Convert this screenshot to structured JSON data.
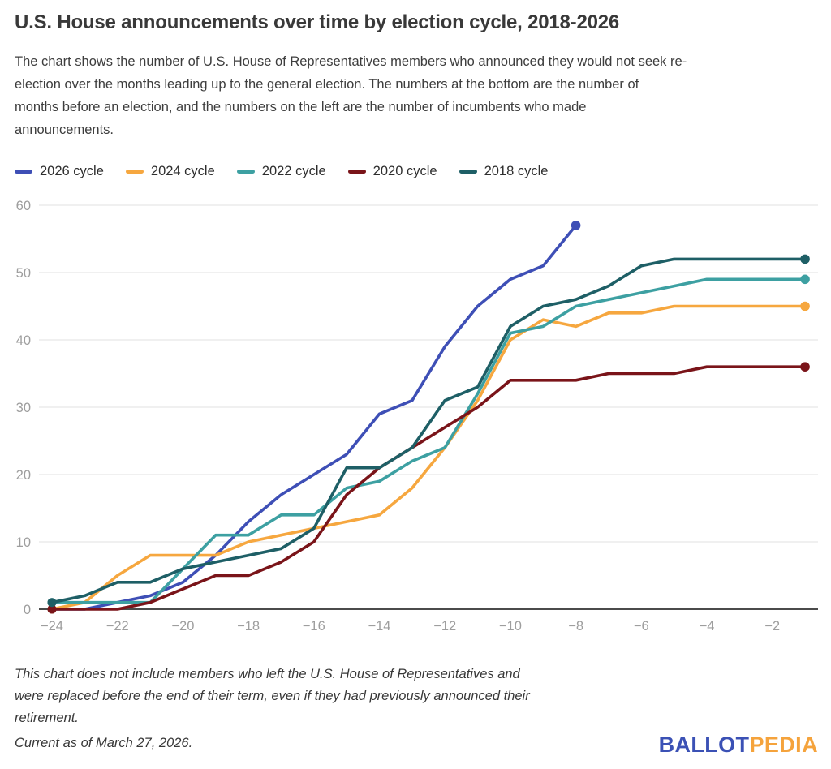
{
  "header": {
    "title": "U.S. House announcements over time by election cycle, 2018-2026",
    "subtitle": "The chart shows the number of U.S. House of Representatives members who announced they would not seek re-\nelection over the months leading up to the general election. The numbers at the bottom are the number of\nmonths before an election, and the numbers on the left are the number of incumbents who made\nannouncements."
  },
  "chart_data": {
    "type": "line",
    "x_range": [
      -24,
      -1
    ],
    "ylim": [
      0,
      60
    ],
    "xticks": [
      -24,
      -22,
      -20,
      -18,
      -16,
      -14,
      -12,
      -10,
      -8,
      -6,
      -4,
      -2
    ],
    "yticks": [
      0,
      10,
      20,
      30,
      40,
      50,
      60
    ],
    "grid": "horizontal",
    "legend_position": "top",
    "colors": {
      "gridline": "#e8e8e8",
      "zero_axis": "#4b4b4b",
      "tick_label": "#9e9e9e"
    },
    "series": [
      {
        "name": "2026 cycle",
        "color": "#3e4fb6",
        "start_month": -24,
        "values": [
          0,
          0,
          1,
          2,
          4,
          8,
          13,
          17,
          20,
          23,
          29,
          31,
          39,
          45,
          49,
          51,
          57
        ]
      },
      {
        "name": "2024 cycle",
        "color": "#f6a73f",
        "start_month": -24,
        "values": [
          0,
          1,
          5,
          8,
          8,
          8,
          10,
          11,
          12,
          13,
          14,
          18,
          24,
          31,
          40,
          43,
          42,
          44,
          44,
          45,
          45,
          45,
          45,
          45
        ]
      },
      {
        "name": "2022 cycle",
        "color": "#3da0a2",
        "start_month": -24,
        "values": [
          1,
          1,
          1,
          1,
          6,
          11,
          11,
          14,
          14,
          18,
          19,
          22,
          24,
          32,
          41,
          42,
          45,
          46,
          47,
          48,
          49,
          49,
          49,
          49
        ]
      },
      {
        "name": "2020 cycle",
        "color": "#7a1419",
        "start_month": -24,
        "values": [
          0,
          0,
          0,
          1,
          3,
          5,
          5,
          7,
          10,
          17,
          21,
          24,
          27,
          30,
          34,
          34,
          34,
          35,
          35,
          35,
          36,
          36,
          36,
          36
        ]
      },
      {
        "name": "2018 cycle",
        "color": "#1e5f66",
        "start_month": -24,
        "values": [
          1,
          2,
          4,
          4,
          6,
          7,
          8,
          9,
          12,
          21,
          21,
          24,
          31,
          33,
          42,
          45,
          46,
          48,
          51,
          52,
          52,
          52,
          52,
          52
        ]
      }
    ]
  },
  "footer": {
    "note": "This chart does not include members who left the U.S. House of Representatives and\nwere replaced before the end of their term, even if they had previously announced their\nretirement.",
    "current_as_of": "Current as of March 27, 2026."
  },
  "logo": {
    "part1": "BALLOT",
    "part2": "PEDIA",
    "part1_color": "#3b51b5",
    "part2_color": "#f5a33c"
  }
}
